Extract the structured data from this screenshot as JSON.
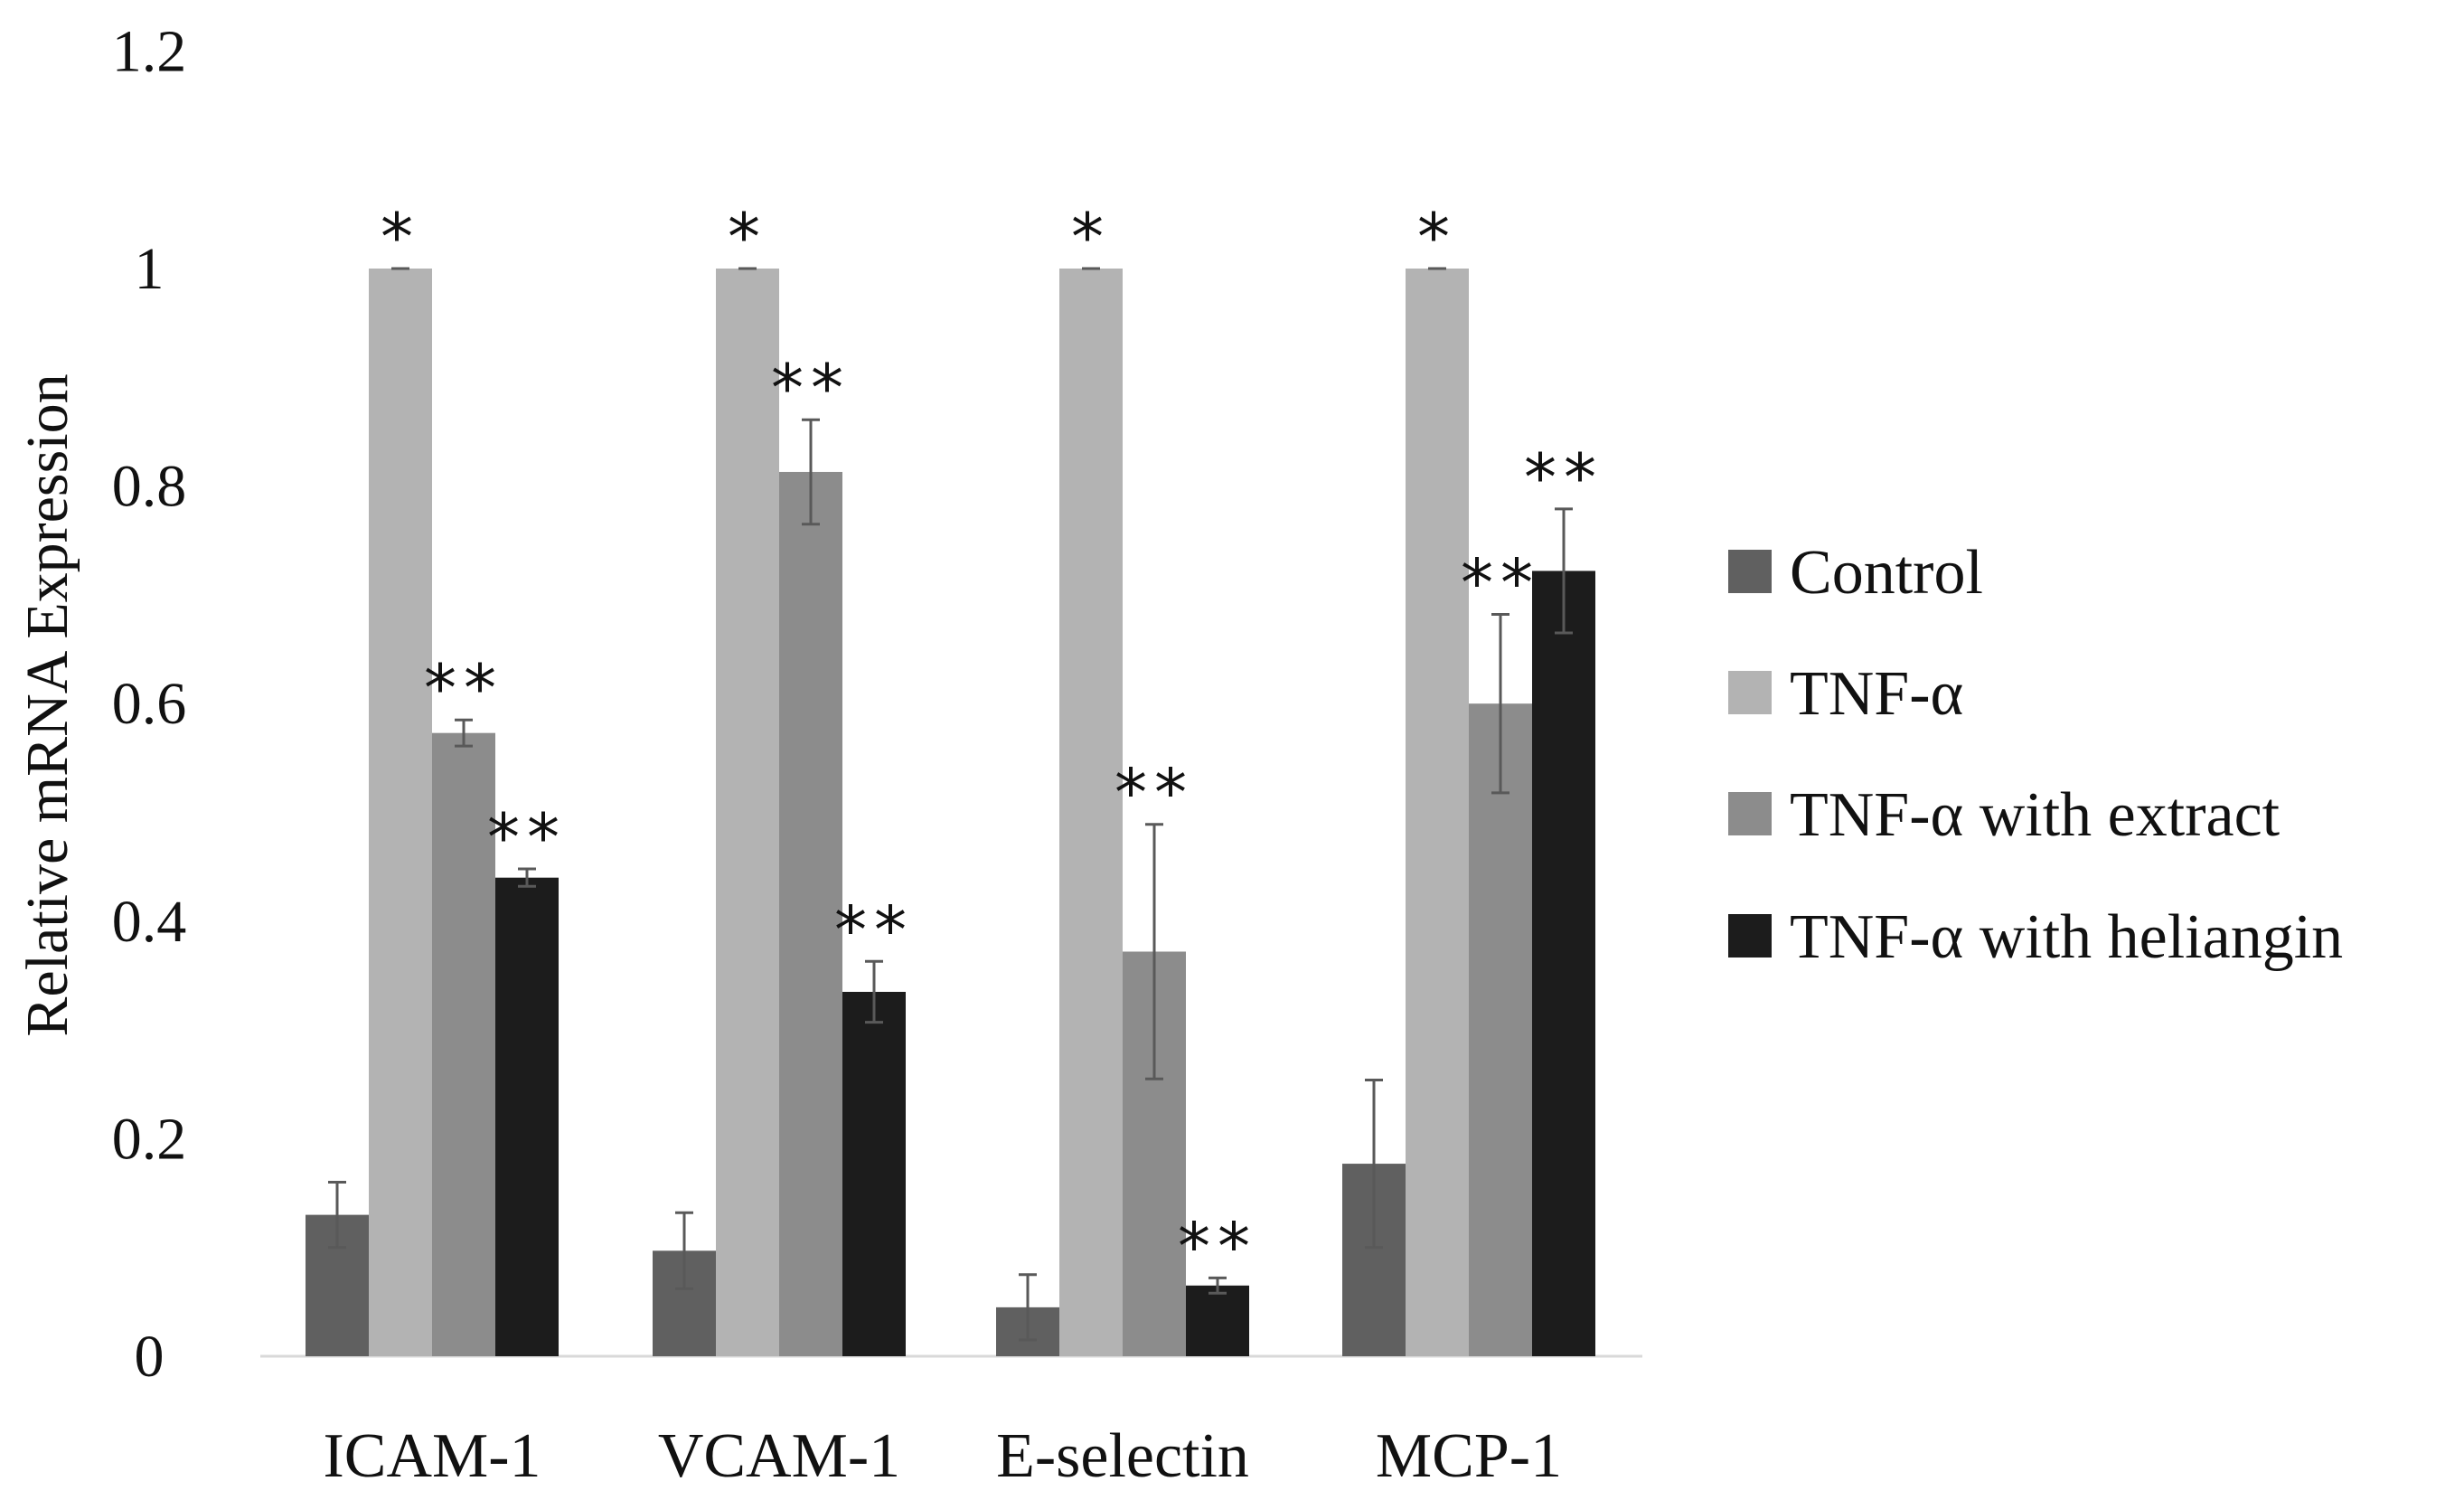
{
  "chart_data": {
    "type": "bar",
    "title": "",
    "xlabel": "",
    "ylabel": "Relative mRNA Expression",
    "ylim": [
      0,
      1.2
    ],
    "yticks": [
      {
        "value": 0,
        "label": "0"
      },
      {
        "value": 0.2,
        "label": "0.2"
      },
      {
        "value": 0.4,
        "label": "0.4"
      },
      {
        "value": 0.6,
        "label": "0.6"
      },
      {
        "value": 0.8,
        "label": "0.8"
      },
      {
        "value": 1,
        "label": "1"
      },
      {
        "value": 1.2,
        "label": "1.2"
      }
    ],
    "grid": false,
    "legend_position": "right",
    "categories": [
      "ICAM-1",
      "VCAM-1",
      "E-selectin",
      "MCP-1"
    ],
    "series": [
      {
        "name": "Control",
        "color": "#606060",
        "values": [
          0.13,
          0.097,
          0.045,
          0.177
        ],
        "errors": [
          0.03,
          0.035,
          0.03,
          0.077
        ],
        "annotations": [
          "",
          "",
          "",
          ""
        ]
      },
      {
        "name": "TNF-α",
        "color": "#b3b3b3",
        "values": [
          1.0,
          1.0,
          1.0,
          1.0
        ],
        "errors": [
          0.0,
          0.0,
          0.0,
          0.0
        ],
        "annotations": [
          "*",
          "*",
          "*",
          "*"
        ]
      },
      {
        "name": "TNF-α with extract",
        "color": "#8c8c8c",
        "values": [
          0.573,
          0.813,
          0.372,
          0.6
        ],
        "errors": [
          0.012,
          0.048,
          0.117,
          0.082
        ],
        "annotations": [
          "**",
          "**",
          "**",
          "**"
        ]
      },
      {
        "name": "TNF-α with heliangin",
        "color": "#1c1c1c",
        "values": [
          0.44,
          0.335,
          0.065,
          0.722
        ],
        "errors": [
          0.008,
          0.028,
          0.007,
          0.057
        ],
        "annotations": [
          "**",
          "**",
          "**",
          "**"
        ]
      }
    ]
  }
}
